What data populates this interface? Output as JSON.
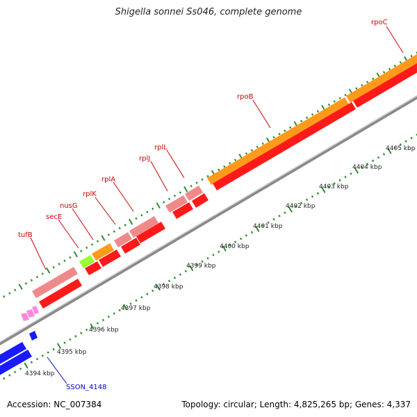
{
  "title": "Shigella sonnei Ss046, complete genome",
  "footer": {
    "accession": "Accession: NC_007384",
    "summary": "Topology: circular; Length: 4,825,265 bp; Genes: 4,337"
  },
  "colors": {
    "background": "#ffffff",
    "tick": "#2e8b2e",
    "backbone": "#8a8a8a",
    "gene_label": "#cc0000",
    "cds_label": "#0000cc",
    "rrna_orange": "#ff9a1a",
    "trna_pink": "#f08a8a",
    "cds_red": "#ff1a1a",
    "sec_green": "#99ff33",
    "minus_blue": "#1a1aff",
    "small_pink": "#ff88dd"
  },
  "scale": {
    "unit": "kbp",
    "labels": [
      "4394 kbp",
      "4395 kbp",
      "4396 kbp",
      "4397 kbp",
      "4398 kbp",
      "4399 kbp",
      "4400 kbp",
      "4401 kbp",
      "4402 kbp",
      "4403 kbp",
      "4404 kbp",
      "4405 kbp"
    ]
  },
  "gene_labels": [
    "tufB",
    "secE",
    "nusG",
    "rplK",
    "rplA",
    "rplJ",
    "rplL",
    "rpoB",
    "rpoC"
  ],
  "cds_labels": [
    "SSON_4148"
  ]
}
